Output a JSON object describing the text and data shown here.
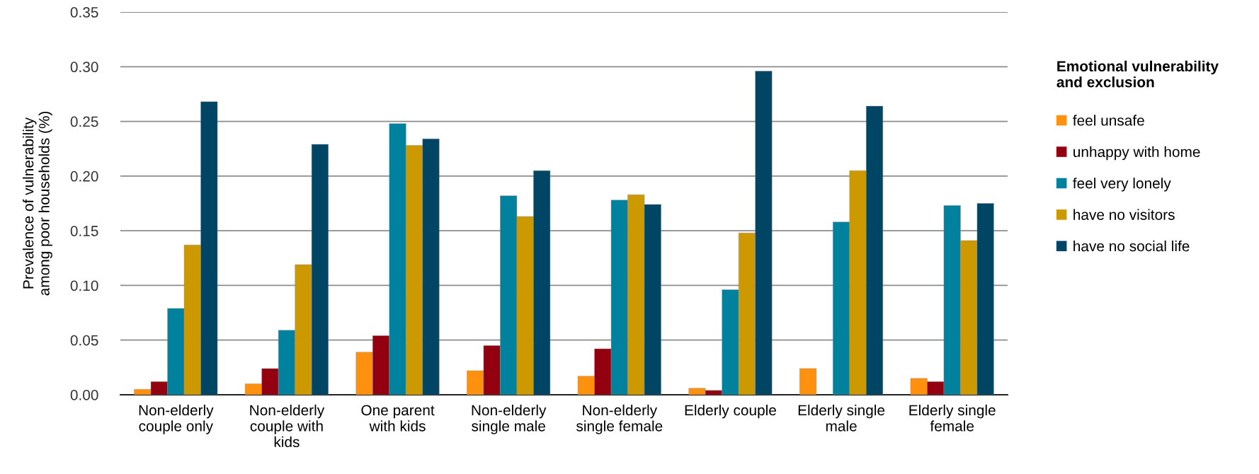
{
  "chart_data": {
    "type": "bar",
    "ylabel": "Prevalence of vulnerability\namong poor households (%)",
    "legend_title": "Emotional vulnerability\nand exclusion",
    "categories": [
      "Non-elderly\ncouple only",
      "Non-elderly\ncouple with\nkids",
      "One parent\nwith kids",
      "Non-elderly\nsingle male",
      "Non-elderly\nsingle female",
      "Elderly couple",
      "Elderly single\nmale",
      "Elderly single\nfemale"
    ],
    "series": [
      {
        "name": "feel unsafe",
        "color": "#ff910f",
        "values": [
          0.005,
          0.01,
          0.039,
          0.022,
          0.017,
          0.006,
          0.024,
          0.015
        ]
      },
      {
        "name": "unhappy with home",
        "color": "#930010",
        "values": [
          0.012,
          0.024,
          0.054,
          0.045,
          0.042,
          0.004,
          null,
          0.012
        ]
      },
      {
        "name": "feel very lonely",
        "color": "#00829e",
        "values": [
          0.079,
          0.059,
          0.248,
          0.182,
          0.178,
          0.096,
          0.158,
          0.173
        ]
      },
      {
        "name": "have no visitors",
        "color": "#cc9900",
        "values": [
          0.137,
          0.119,
          0.228,
          0.163,
          0.183,
          0.148,
          0.205,
          0.141
        ]
      },
      {
        "name": "have no social life",
        "color": "#004563",
        "values": [
          0.268,
          0.229,
          0.234,
          0.205,
          0.174,
          0.296,
          0.264,
          0.175
        ]
      }
    ],
    "ylim": [
      0,
      0.35
    ],
    "yticks": [
      {
        "value": 0,
        "label": "0.00"
      },
      {
        "value": 0.05,
        "label": "0.05"
      },
      {
        "value": 0.1,
        "label": "0.10"
      },
      {
        "value": 0.15,
        "label": "0.15"
      },
      {
        "value": 0.2,
        "label": "0.20"
      },
      {
        "value": 0.25,
        "label": "0.25"
      },
      {
        "value": 0.3,
        "label": "0.30"
      },
      {
        "value": 0.35,
        "label": "0.35"
      }
    ],
    "grid": "y",
    "legend": "right"
  }
}
